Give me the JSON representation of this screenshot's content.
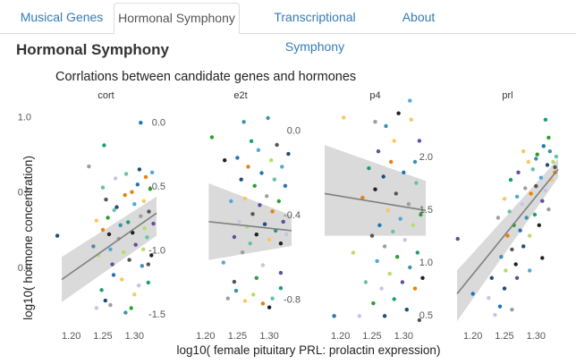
{
  "tabs": [
    {
      "label": "Musical Genes",
      "active": false
    },
    {
      "label": "Hormonal Symphony",
      "active": true
    },
    {
      "label": "Transcriptional Symphony",
      "active": false
    },
    {
      "label": "About",
      "active": false
    }
  ],
  "page_title": "Hormonal Symphony",
  "colors": {
    "link": "#337ab7",
    "band": "#d4d4d4",
    "trend": "#7f7f7f",
    "points": [
      "#1f4e79",
      "#1f77b4",
      "#52a7d9",
      "#2ca02c",
      "#1b9e77",
      "#e6820e",
      "#fdc55e",
      "#9e9e9e",
      "#c5c5e8",
      "#5e4fa2",
      "#222222",
      "#555555",
      "#66c2a5",
      "#b3de69",
      "#3e8fb0"
    ]
  },
  "chart_data": {
    "type": "scatter",
    "title": "Corrlations between candidate genes and hormones",
    "xlabel": "log10(  female pituitary PRL: prolactin  expression)",
    "ylabel": "log10( hormone concentration)",
    "panels": [
      {
        "name": "cort",
        "xticks": [
          "1.20",
          "1.25",
          "1.30"
        ],
        "xlim": [
          1.175,
          1.335
        ],
        "ylim": [
          -0.35,
          1.05
        ],
        "yticks": [
          {
            "v": 1.0,
            "label": "1.0"
          },
          {
            "v": 0.5,
            "label": "0.5"
          },
          {
            "v": 0.0,
            "label": "0.0"
          }
        ],
        "trend": {
          "x1": 1.185,
          "y1": -0.08,
          "x2": 1.335,
          "y2": 0.36
        },
        "band": {
          "lo": [
            -0.23,
            0.21
          ],
          "hi": [
            0.07,
            0.47
          ]
        },
        "points": [
          [
            1.178,
            0.21
          ],
          [
            1.228,
            0.67
          ],
          [
            1.235,
            0.14
          ],
          [
            1.24,
            0.31
          ],
          [
            1.243,
            0.08
          ],
          [
            1.25,
            0.25
          ],
          [
            1.25,
            0.53
          ],
          [
            1.252,
            0.81
          ],
          [
            1.255,
            0.45
          ],
          [
            1.258,
            0.33
          ],
          [
            1.26,
            0.22
          ],
          [
            1.262,
            0.12
          ],
          [
            1.265,
            0.02
          ],
          [
            1.267,
            -0.05
          ],
          [
            1.27,
            0.59
          ],
          [
            1.272,
            0.4
          ],
          [
            1.275,
            0.19
          ],
          [
            1.278,
            0.28
          ],
          [
            1.28,
            -0.08
          ],
          [
            1.283,
            0.1
          ],
          [
            1.285,
            0.48
          ],
          [
            1.287,
            0.62
          ],
          [
            1.29,
            0.3
          ],
          [
            1.292,
            0.05
          ],
          [
            1.295,
            -0.27
          ],
          [
            1.297,
            0.23
          ],
          [
            1.3,
            0.42
          ],
          [
            1.302,
            0.15
          ],
          [
            1.305,
            0.55
          ],
          [
            1.307,
            -0.12
          ],
          [
            1.308,
            0.65
          ],
          [
            1.31,
            0.34
          ],
          [
            1.312,
            0.01
          ],
          [
            1.315,
            0.44
          ],
          [
            1.316,
            0.26
          ],
          [
            1.318,
            0.6
          ],
          [
            1.32,
            0.2
          ],
          [
            1.322,
            -0.1
          ],
          [
            1.323,
            0.37
          ],
          [
            1.325,
            0.52
          ],
          [
            1.327,
            0.08
          ],
          [
            1.328,
            0.63
          ],
          [
            1.33,
            0.29
          ],
          [
            1.31,
            0.96
          ],
          [
            1.24,
            -0.27
          ],
          [
            1.254,
            -0.22
          ],
          [
            1.262,
            -0.25
          ],
          [
            1.286,
            -0.3
          ],
          [
            1.3,
            -0.18
          ],
          [
            1.314,
            0.12
          ],
          [
            1.296,
            0.5
          ],
          [
            1.268,
            0.38
          ],
          [
            1.248,
            -0.15
          ],
          [
            1.322,
            0.02
          ]
        ]
      },
      {
        "name": "e2t",
        "xticks": [
          "1.20",
          "1.25",
          "1.30"
        ],
        "xlim": [
          1.175,
          1.335
        ],
        "ylim": [
          -1.55,
          0.1
        ],
        "yticks": [
          {
            "v": 0.0,
            "label": "0.0"
          },
          {
            "v": -0.5,
            "label": "-0.5"
          },
          {
            "v": -1.0,
            "label": "-1.0"
          },
          {
            "v": -1.5,
            "label": "-1.5"
          }
        ],
        "trend": {
          "x1": 1.205,
          "y1": -0.78,
          "x2": 1.335,
          "y2": -0.85
        },
        "band": {
          "lo": [
            -1.08,
            -0.97
          ],
          "hi": [
            -0.48,
            -0.73
          ]
        },
        "points": [
          [
            1.21,
            -0.12
          ],
          [
            1.23,
            -0.3
          ],
          [
            1.24,
            -0.62
          ],
          [
            1.245,
            -0.9
          ],
          [
            1.25,
            -0.28
          ],
          [
            1.253,
            -0.78
          ],
          [
            1.256,
            -0.45
          ],
          [
            1.258,
            -1.02
          ],
          [
            1.26,
            0.0
          ],
          [
            1.262,
            -0.6
          ],
          [
            1.265,
            -0.82
          ],
          [
            1.267,
            -0.35
          ],
          [
            1.27,
            -0.95
          ],
          [
            1.272,
            -0.15
          ],
          [
            1.274,
            -0.72
          ],
          [
            1.277,
            -0.5
          ],
          [
            1.28,
            -0.88
          ],
          [
            1.283,
            -0.22
          ],
          [
            1.285,
            -0.65
          ],
          [
            1.288,
            -0.4
          ],
          [
            1.29,
            -1.12
          ],
          [
            1.293,
            -0.8
          ],
          [
            1.296,
            -0.58
          ],
          [
            1.298,
            0.03
          ],
          [
            1.3,
            -0.92
          ],
          [
            1.303,
            -0.3
          ],
          [
            1.305,
            -0.7
          ],
          [
            1.308,
            -0.45
          ],
          [
            1.31,
            -0.85
          ],
          [
            1.312,
            -0.18
          ],
          [
            1.315,
            -0.62
          ],
          [
            1.318,
            -0.95
          ],
          [
            1.32,
            -0.35
          ],
          [
            1.322,
            -0.78
          ],
          [
            1.325,
            -0.5
          ],
          [
            1.327,
            -0.88
          ],
          [
            1.33,
            -0.25
          ],
          [
            1.235,
            -1.38
          ],
          [
            1.248,
            -1.32
          ],
          [
            1.262,
            -1.4
          ],
          [
            1.275,
            -1.35
          ],
          [
            1.29,
            -1.42
          ],
          [
            1.305,
            -1.38
          ],
          [
            1.318,
            -1.3
          ],
          [
            1.245,
            -1.25
          ],
          [
            1.28,
            -1.22
          ],
          [
            1.3,
            -1.45
          ],
          [
            1.228,
            -1.1
          ],
          [
            1.318,
            -1.18
          ]
        ]
      },
      {
        "name": "p4",
        "xticks": [
          "1.20",
          "1.25",
          "1.30"
        ],
        "xlim": [
          1.175,
          1.335
        ],
        "ylim": [
          -0.9,
          0.1
        ],
        "yticks": [
          {
            "v": 0.0,
            "label": "0.0"
          },
          {
            "v": -0.4,
            "label": "-0.4"
          },
          {
            "v": -0.8,
            "label": "-0.8"
          }
        ],
        "trend": {
          "x1": 1.175,
          "y1": -0.3,
          "x2": 1.335,
          "y2": -0.38
        },
        "band": {
          "lo": [
            -0.5,
            -0.5
          ],
          "hi": [
            -0.07,
            -0.24
          ]
        },
        "points": [
          [
            1.205,
            0.06
          ],
          [
            1.22,
            -0.58
          ],
          [
            1.235,
            -0.32
          ],
          [
            1.24,
            -0.72
          ],
          [
            1.245,
            -0.18
          ],
          [
            1.25,
            -0.5
          ],
          [
            1.252,
            -0.82
          ],
          [
            1.255,
            -0.28
          ],
          [
            1.258,
            -0.62
          ],
          [
            1.26,
            -0.1
          ],
          [
            1.262,
            -0.45
          ],
          [
            1.265,
            -0.75
          ],
          [
            1.268,
            -0.22
          ],
          [
            1.27,
            -0.55
          ],
          [
            1.272,
            0.02
          ],
          [
            1.275,
            -0.38
          ],
          [
            1.278,
            -0.68
          ],
          [
            1.28,
            -0.15
          ],
          [
            1.283,
            -0.48
          ],
          [
            1.285,
            -0.8
          ],
          [
            1.288,
            -0.3
          ],
          [
            1.29,
            -0.6
          ],
          [
            1.292,
            0.08
          ],
          [
            1.295,
            -0.42
          ],
          [
            1.298,
            -0.72
          ],
          [
            1.3,
            -0.2
          ],
          [
            1.302,
            -0.52
          ],
          [
            1.305,
            -0.85
          ],
          [
            1.308,
            -0.35
          ],
          [
            1.31,
            -0.65
          ],
          [
            1.312,
            0.05
          ],
          [
            1.315,
            -0.45
          ],
          [
            1.318,
            -0.75
          ],
          [
            1.32,
            -0.25
          ],
          [
            1.322,
            -0.58
          ],
          [
            1.325,
            -0.9
          ],
          [
            1.327,
            -0.4
          ],
          [
            1.33,
            -0.7
          ],
          [
            1.31,
            0.14
          ],
          [
            1.325,
            -0.05
          ],
          [
            1.19,
            -0.88
          ],
          [
            1.23,
            -0.88
          ],
          [
            1.27,
            -0.88
          ],
          [
            1.255,
            0.04
          ],
          [
            1.318,
            -0.15
          ],
          [
            1.285,
            -0.05
          ]
        ]
      },
      {
        "name": "prl",
        "xticks": [
          "1.20",
          "1.25",
          "1.30"
        ],
        "xlim": [
          1.175,
          1.335
        ],
        "ylim": [
          0.45,
          2.45
        ],
        "yticks": [
          {
            "v": 2.0,
            "label": "2.0"
          },
          {
            "v": 1.5,
            "label": "1.5"
          },
          {
            "v": 1.0,
            "label": "1.0"
          },
          {
            "v": 0.5,
            "label": "0.5"
          }
        ],
        "trend": {
          "x1": 1.175,
          "y1": 0.7,
          "x2": 1.335,
          "y2": 1.88
        },
        "band": {
          "lo": [
            0.44,
            1.8
          ],
          "hi": [
            0.92,
            1.98
          ]
        },
        "points": [
          [
            1.176,
            1.22
          ],
          [
            1.2,
            0.7
          ],
          [
            1.225,
            0.66
          ],
          [
            1.23,
            0.85
          ],
          [
            1.24,
            1.42
          ],
          [
            1.245,
            1.05
          ],
          [
            1.25,
            1.6
          ],
          [
            1.252,
            0.92
          ],
          [
            1.255,
            1.25
          ],
          [
            1.258,
            1.48
          ],
          [
            1.26,
            1.78
          ],
          [
            1.262,
            1.12
          ],
          [
            1.265,
            1.35
          ],
          [
            1.268,
            0.98
          ],
          [
            1.27,
            1.62
          ],
          [
            1.272,
            1.85
          ],
          [
            1.275,
            1.3
          ],
          [
            1.278,
            1.55
          ],
          [
            1.28,
            1.15
          ],
          [
            1.283,
            1.7
          ],
          [
            1.285,
            1.42
          ],
          [
            1.288,
            1.95
          ],
          [
            1.29,
            1.25
          ],
          [
            1.292,
            1.65
          ],
          [
            1.295,
            1.88
          ],
          [
            1.298,
            1.45
          ],
          [
            1.3,
            1.72
          ],
          [
            1.302,
            2.02
          ],
          [
            1.305,
            1.35
          ],
          [
            1.308,
            1.8
          ],
          [
            1.31,
            1.58
          ],
          [
            1.312,
            2.1
          ],
          [
            1.315,
            1.68
          ],
          [
            1.318,
            1.92
          ],
          [
            1.32,
            1.5
          ],
          [
            1.322,
            2.05
          ],
          [
            1.325,
            1.78
          ],
          [
            1.327,
            1.95
          ],
          [
            1.33,
            1.85
          ],
          [
            1.332,
            2.0
          ],
          [
            1.315,
            2.35
          ],
          [
            1.33,
            1.9
          ],
          [
            1.32,
            2.18
          ],
          [
            1.31,
            1.04
          ],
          [
            1.29,
            0.92
          ],
          [
            1.27,
            0.85
          ],
          [
            1.243,
            0.58
          ],
          [
            1.235,
            0.5
          ],
          [
            1.25,
            0.75
          ],
          [
            1.262,
            0.55
          ],
          [
            1.3,
            1.98
          ],
          [
            1.28,
            2.05
          ]
        ]
      }
    ]
  }
}
